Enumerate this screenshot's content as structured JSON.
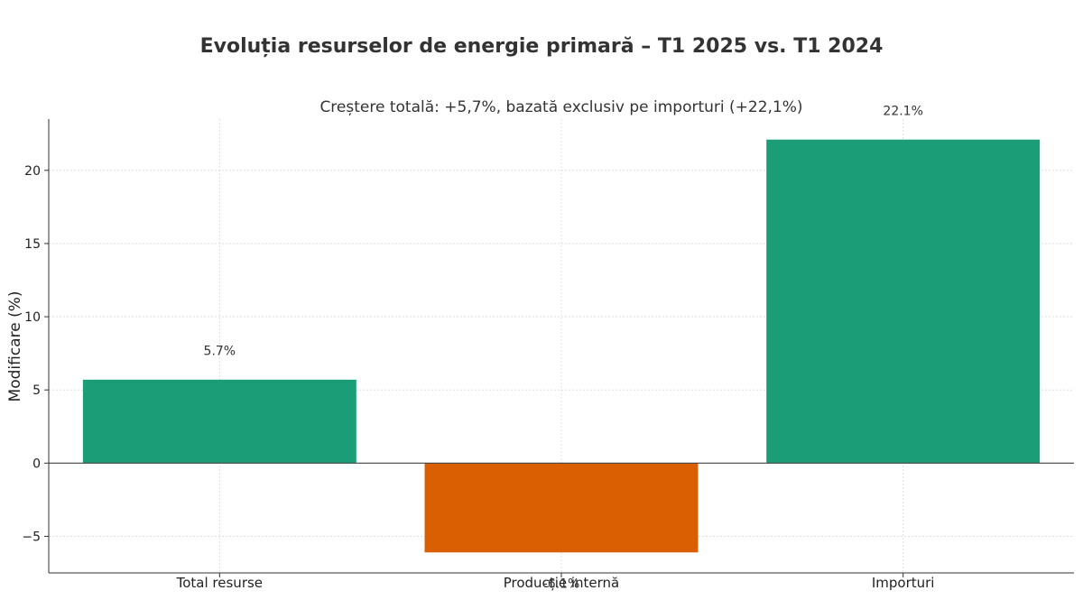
{
  "chart_data": {
    "type": "bar",
    "title": "Evoluția resurselor de energie primară – T1 2025 vs. T1 2024",
    "subtitle": "Creștere totală: +5,7%, bazată exclusiv pe importuri (+22,1%)",
    "xlabel": "",
    "ylabel": "Modificare (%)",
    "categories": [
      "Total resurse",
      "Producție internă",
      "Importuri"
    ],
    "values": [
      5.7,
      -6.1,
      22.1
    ],
    "data_labels": [
      "5.7%",
      "-6.1%",
      "22.1%"
    ],
    "colors": [
      "#1b9e77",
      "#d95f02",
      "#1b9e77"
    ],
    "ylim": [
      -7.5,
      23.5
    ],
    "yticks": [
      -5,
      0,
      5,
      10,
      15,
      20
    ],
    "ytick_labels": [
      "−5",
      "0",
      "5",
      "10",
      "15",
      "20"
    ],
    "grid": true,
    "legend": "none"
  }
}
